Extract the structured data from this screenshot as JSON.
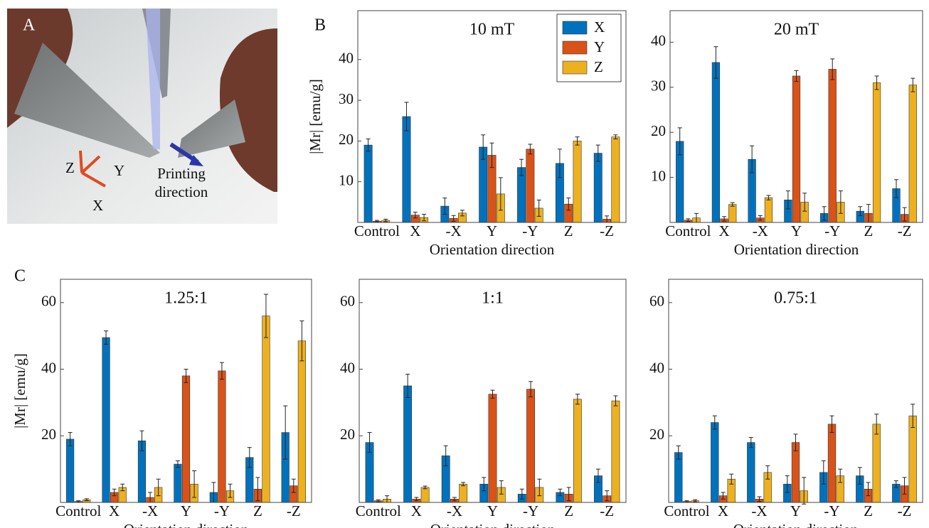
{
  "panel_labels": {
    "a": "A",
    "b": "B",
    "c": "C"
  },
  "panel_a": {
    "axis_labels": [
      "Z",
      "Y",
      "X"
    ],
    "annotation": [
      "Printing",
      "direction"
    ]
  },
  "chart_data": [
    {
      "type": "bar",
      "title": "10 mT",
      "x_label": "Orientation direction",
      "y_label": "|Mr| [emu/g]",
      "categories": [
        "Control",
        "X",
        "-X",
        "Y",
        "-Y",
        "Z",
        "-Z"
      ],
      "ylim": [
        0,
        52
      ],
      "yticks": [
        10,
        20,
        30,
        40
      ],
      "legend": "upper right",
      "series": [
        {
          "name": "X",
          "color": "#0072bd",
          "values": [
            19,
            26,
            4,
            18.5,
            13.5,
            14.5,
            17
          ],
          "errors": [
            1.5,
            3.5,
            2,
            3,
            2,
            3.5,
            2
          ]
        },
        {
          "name": "Y",
          "color": "#d95319",
          "values": [
            0.3,
            1.8,
            1,
            16.5,
            18,
            4.5,
            0.8
          ],
          "errors": [
            0.2,
            0.7,
            0.7,
            3,
            1.2,
            1.5,
            0.8
          ]
        },
        {
          "name": "Z",
          "color": "#edb120",
          "values": [
            0.5,
            1.2,
            2.3,
            7,
            3.5,
            20,
            21
          ],
          "errors": [
            0.3,
            0.8,
            0.7,
            4,
            2,
            1,
            0.5
          ]
        }
      ]
    },
    {
      "type": "bar",
      "title": "20 mT",
      "x_label": "Orientation direction",
      "categories": [
        "Control",
        "X",
        "-X",
        "Y",
        "-Y",
        "Z",
        "-Z"
      ],
      "ylim": [
        0,
        47
      ],
      "yticks": [
        10,
        20,
        30,
        40
      ],
      "series": [
        {
          "color": "#0072bd",
          "values": [
            18,
            35.5,
            14,
            5,
            2,
            2.5,
            7.5
          ],
          "errors": [
            3,
            3.5,
            3,
            2,
            1.5,
            1,
            2
          ]
        },
        {
          "color": "#d95319",
          "values": [
            0.5,
            0.8,
            1,
            32.5,
            34,
            2,
            1.8
          ],
          "errors": [
            0.3,
            0.5,
            0.5,
            1.2,
            2.3,
            2,
            1.5
          ]
        },
        {
          "color": "#edb120",
          "values": [
            1,
            4,
            5.5,
            4.5,
            4.5,
            31,
            30.5
          ],
          "errors": [
            1,
            0.4,
            0.5,
            2,
            2.5,
            1.5,
            1.5
          ]
        }
      ]
    },
    {
      "type": "bar",
      "title": "1.25:1",
      "x_label": "Orientation direction",
      "y_label": "|Mr| [emu/g]",
      "categories": [
        "Control",
        "X",
        "-X",
        "Y",
        "-Y",
        "Z",
        "-Z"
      ],
      "ylim": [
        0,
        67
      ],
      "yticks": [
        20,
        40,
        60
      ],
      "series": [
        {
          "color": "#0072bd",
          "values": [
            19,
            49.5,
            18.5,
            11.5,
            3,
            13.5,
            21
          ],
          "errors": [
            2,
            2,
            3,
            1,
            3,
            3,
            8
          ]
        },
        {
          "color": "#d95319",
          "values": [
            0.3,
            3,
            1.5,
            38,
            39.5,
            4,
            5
          ],
          "errors": [
            0.2,
            1,
            1.5,
            2,
            2.5,
            3.5,
            2
          ]
        },
        {
          "color": "#edb120",
          "values": [
            0.8,
            4.5,
            4.5,
            5.5,
            3.5,
            56,
            48.5
          ],
          "errors": [
            0.3,
            1,
            2.5,
            4,
            2,
            6.5,
            6
          ]
        }
      ]
    },
    {
      "type": "bar",
      "title": "1:1",
      "x_label": "Orientation direction",
      "categories": [
        "Control",
        "X",
        "-X",
        "Y",
        "-Y",
        "Z",
        "-Z"
      ],
      "ylim": [
        0,
        67
      ],
      "yticks": [
        20,
        40,
        60
      ],
      "series": [
        {
          "color": "#0072bd",
          "values": [
            18,
            35,
            14,
            5.5,
            2.5,
            3,
            8
          ],
          "errors": [
            3,
            3.5,
            3,
            2,
            1.5,
            1,
            2
          ]
        },
        {
          "color": "#d95319",
          "values": [
            0.5,
            1,
            1,
            32.5,
            34,
            2.5,
            2
          ],
          "errors": [
            0.3,
            0.5,
            0.5,
            1.2,
            2.3,
            2,
            1.5
          ]
        },
        {
          "color": "#edb120",
          "values": [
            1,
            4.5,
            5.5,
            4.5,
            4.5,
            31,
            30.5
          ],
          "errors": [
            1,
            0.4,
            0.5,
            2,
            2.5,
            1.5,
            1.5
          ]
        }
      ]
    },
    {
      "type": "bar",
      "title": "0.75:1",
      "x_label": "Orientation direction",
      "categories": [
        "Control",
        "X",
        "-X",
        "Y",
        "-Y",
        "Z",
        "-Z"
      ],
      "ylim": [
        0,
        67
      ],
      "yticks": [
        20,
        40,
        60
      ],
      "series": [
        {
          "color": "#0072bd",
          "values": [
            15,
            24,
            18,
            5.5,
            9,
            8,
            5.5
          ],
          "errors": [
            2,
            2,
            1.5,
            2.5,
            3.5,
            2.5,
            1
          ]
        },
        {
          "color": "#d95319",
          "values": [
            0.3,
            2,
            1,
            18,
            23.5,
            4,
            5
          ],
          "errors": [
            0.2,
            1,
            0.7,
            2.5,
            2.5,
            2,
            2.5
          ]
        },
        {
          "color": "#edb120",
          "values": [
            0.5,
            7,
            9,
            3.5,
            8,
            23.5,
            26
          ],
          "errors": [
            0.3,
            1.5,
            2,
            4,
            2,
            3,
            3.5
          ]
        }
      ]
    }
  ]
}
